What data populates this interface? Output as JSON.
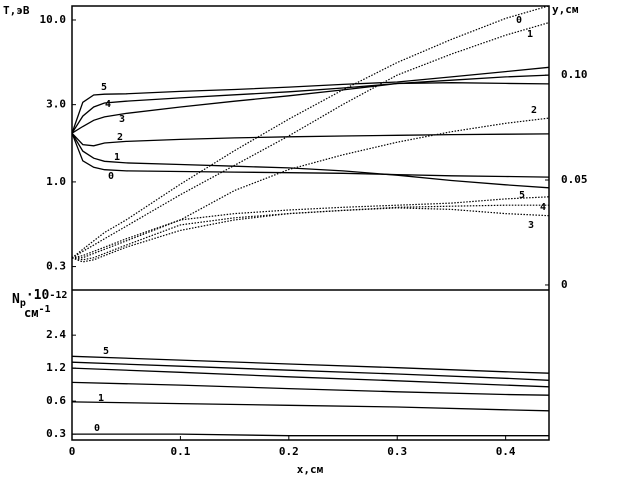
{
  "chart_data": [
    {
      "type": "line",
      "ylabel": "T,эВ",
      "y2label": "y,см",
      "x": [
        0,
        0.01,
        0.02,
        0.03,
        0.05,
        0.1,
        0.15,
        0.2,
        0.25,
        0.3,
        0.35,
        0.4,
        0.44
      ],
      "xlim": [
        0,
        0.44
      ],
      "ylim": [
        0.215,
        12.2
      ],
      "yscale": "log",
      "yticks": [
        {
          "value": 10,
          "label": "10.0"
        },
        {
          "value": 3,
          "label": "3.0"
        },
        {
          "value": 1,
          "label": "1.0"
        },
        0.3
      ],
      "y2lim": [
        -0.0024,
        0.1329
      ],
      "y2ticks": [
        0,
        0.05,
        {
          "value": 0.1,
          "label": "0.10"
        }
      ],
      "series": [
        {
          "name": "0",
          "color": "#000000",
          "style": "solid",
          "values": [
            2.0,
            1.35,
            1.23,
            1.19,
            1.17,
            1.16,
            1.15,
            1.14,
            1.13,
            1.11,
            1.09,
            1.08,
            1.07
          ]
        },
        {
          "name": "1",
          "color": "#000000",
          "style": "solid",
          "values": [
            2.0,
            1.55,
            1.4,
            1.34,
            1.31,
            1.28,
            1.25,
            1.22,
            1.17,
            1.1,
            1.02,
            0.96,
            0.92
          ]
        },
        {
          "name": "2",
          "color": "#000000",
          "style": "solid",
          "values": [
            2.0,
            1.7,
            1.67,
            1.74,
            1.78,
            1.83,
            1.87,
            1.9,
            1.92,
            1.94,
            1.96,
            1.97,
            1.98
          ]
        },
        {
          "name": "3",
          "color": "#000000",
          "style": "solid",
          "values": [
            2.0,
            2.2,
            2.4,
            2.52,
            2.65,
            2.9,
            3.15,
            3.4,
            3.7,
            4.05,
            4.1,
            4.06,
            4.03
          ]
        },
        {
          "name": "4",
          "color": "#000000",
          "style": "solid",
          "values": [
            2.0,
            2.55,
            2.9,
            3.07,
            3.15,
            3.3,
            3.45,
            3.6,
            3.8,
            4.05,
            4.25,
            4.45,
            4.57
          ]
        },
        {
          "name": "5",
          "color": "#000000",
          "style": "solid",
          "values": [
            2.0,
            3.1,
            3.44,
            3.48,
            3.5,
            3.62,
            3.72,
            3.85,
            4.0,
            4.14,
            4.45,
            4.8,
            5.1
          ]
        },
        {
          "name": "0",
          "color": "#000000",
          "style": "dotted",
          "axis": "y2",
          "values": [
            0.0129,
            0.017,
            0.021,
            0.025,
            0.031,
            0.048,
            0.064,
            0.079,
            0.093,
            0.106,
            0.117,
            0.127,
            0.133
          ]
        },
        {
          "name": "1",
          "color": "#000000",
          "style": "dotted",
          "axis": "y2",
          "values": [
            0.0129,
            0.016,
            0.019,
            0.022,
            0.028,
            0.043,
            0.057,
            0.071,
            0.086,
            0.1,
            0.11,
            0.119,
            0.125
          ]
        },
        {
          "name": "2",
          "color": "#000000",
          "style": "dotted",
          "axis": "y2",
          "values": [
            0.0129,
            0.014,
            0.016,
            0.018,
            0.022,
            0.031,
            0.045,
            0.055,
            0.062,
            0.068,
            0.073,
            0.077,
            0.0795
          ]
        },
        {
          "name": "3",
          "color": "#000000",
          "style": "dotted",
          "axis": "y2",
          "values": [
            0.0129,
            0.011,
            0.012,
            0.014,
            0.018,
            0.026,
            0.031,
            0.034,
            0.0355,
            0.0367,
            0.036,
            0.034,
            0.033
          ]
        },
        {
          "name": "4",
          "color": "#000000",
          "style": "dotted",
          "axis": "y2",
          "values": [
            0.0129,
            0.012,
            0.013,
            0.015,
            0.019,
            0.0286,
            0.032,
            0.034,
            0.0355,
            0.037,
            0.0375,
            0.038,
            0.038
          ]
        },
        {
          "name": "5",
          "color": "#000000",
          "style": "dotted",
          "axis": "y2",
          "values": [
            0.0129,
            0.013,
            0.015,
            0.017,
            0.021,
            0.031,
            0.034,
            0.0357,
            0.037,
            0.038,
            0.039,
            0.041,
            0.042
          ]
        }
      ]
    },
    {
      "type": "line",
      "ylabel": {
        "main": "N",
        "sub": "p",
        "mult": "·10",
        "exp": "-12",
        "unit": "см",
        "unit_exp": "-1"
      },
      "xlabel": "x,см",
      "x": [
        0,
        0.1,
        0.2,
        0.3,
        0.4,
        0.44
      ],
      "xlim": [
        0,
        0.44
      ],
      "xticks": [
        0,
        0.1,
        0.2,
        0.3,
        0.4
      ],
      "ylim": [
        0.265,
        6.2
      ],
      "yscale": "log",
      "yticks": [
        2.4,
        1.2,
        0.6,
        0.3
      ],
      "series": [
        {
          "name": "5",
          "color": "#000000",
          "style": "solid",
          "values": [
            1.54,
            1.42,
            1.31,
            1.21,
            1.11,
            1.08
          ]
        },
        {
          "color": "#000000",
          "style": "solid",
          "values": [
            1.36,
            1.25,
            1.15,
            1.06,
            0.97,
            0.93
          ]
        },
        {
          "color": "#000000",
          "style": "solid",
          "values": [
            1.2,
            1.1,
            1.0,
            0.92,
            0.84,
            0.81
          ]
        },
        {
          "color": "#000000",
          "style": "solid",
          "values": [
            0.89,
            0.84,
            0.78,
            0.73,
            0.69,
            0.68
          ]
        },
        {
          "name": "1",
          "color": "#000000",
          "style": "solid",
          "values": [
            0.59,
            0.57,
            0.55,
            0.53,
            0.5,
            0.49
          ]
        },
        {
          "name": "0",
          "color": "#000000",
          "style": "solid",
          "values": [
            0.3,
            0.3,
            0.29,
            0.29,
            0.29,
            0.29
          ]
        }
      ]
    }
  ]
}
